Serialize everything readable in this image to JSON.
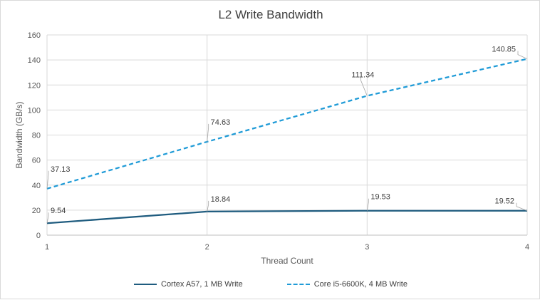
{
  "chart_data": {
    "type": "line",
    "title": "L2 Write Bandwidth",
    "xlabel": "Thread Count",
    "ylabel": "Bandwidth (GB/s)",
    "x": [
      1,
      2,
      3,
      4
    ],
    "xlim": [
      1,
      4
    ],
    "ylim": [
      0,
      160
    ],
    "yticks": [
      0,
      20,
      40,
      60,
      80,
      100,
      120,
      140,
      160
    ],
    "grid": true,
    "legend_position": "bottom",
    "series": [
      {
        "name": "Cortex A57, 1 MB Write",
        "values": [
          9.54,
          18.84,
          19.53,
          19.52
        ],
        "labels": [
          "9.54",
          "18.84",
          "19.53",
          "19.52"
        ],
        "color": "#1f5c7f",
        "dash": "solid"
      },
      {
        "name": "Core i5-6600K, 4 MB Write",
        "values": [
          37.13,
          74.63,
          111.34,
          140.85
        ],
        "labels": [
          "37.13",
          "74.63",
          "111.34",
          "140.85"
        ],
        "color": "#1f9bd7",
        "dash": "dashed"
      }
    ]
  }
}
